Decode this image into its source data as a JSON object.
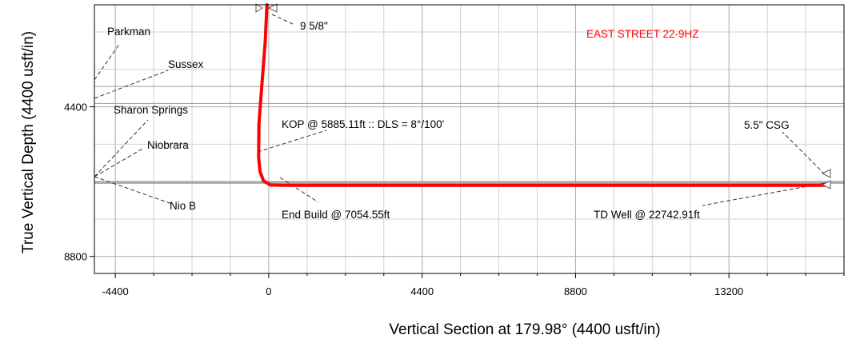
{
  "chart_data": {
    "type": "line",
    "title": "EAST STREET 22-9HZ",
    "title_color": "#ff0000",
    "xlabel": "Vertical Section at 179.98° (4400 usft/in)",
    "ylabel": "True Vertical Depth (4400 usft/in)",
    "x_ticks": [
      -4400,
      0,
      4400,
      8800,
      13200
    ],
    "y_ticks": [
      4400,
      8800
    ],
    "xlim": [
      -5000,
      16500
    ],
    "ylim": [
      1400,
      9300
    ],
    "y_inverted": true,
    "grid": true,
    "series": [
      {
        "color": "#ff0000",
        "points": [
          [
            -50,
            1400
          ],
          [
            -100,
            2500
          ],
          [
            -200,
            3800
          ],
          [
            -280,
            4900
          ],
          [
            -290,
            5885
          ],
          [
            -250,
            6300
          ],
          [
            -150,
            6580
          ],
          [
            50,
            6700
          ],
          [
            400,
            6710
          ],
          [
            16000,
            6710
          ]
        ]
      }
    ],
    "formation_tops": [
      {
        "name": "Parkman",
        "depth": 3800
      },
      {
        "name": "Sussex",
        "depth": 4300
      },
      {
        "name": "Sharon Springs",
        "depth": 6600
      },
      {
        "name": "Niobrara",
        "depth": 6620
      },
      {
        "name": "Nio B",
        "depth": 6650
      }
    ],
    "annotations": [
      {
        "text": "9 5/8\""
      },
      {
        "text": "KOP @ 5885.11ft :: DLS = 8°/100'"
      },
      {
        "text": "End Build @ 7054.55ft"
      },
      {
        "text": "5.5\" CSG"
      },
      {
        "text": "TD Well @ 22742.91ft"
      }
    ]
  }
}
